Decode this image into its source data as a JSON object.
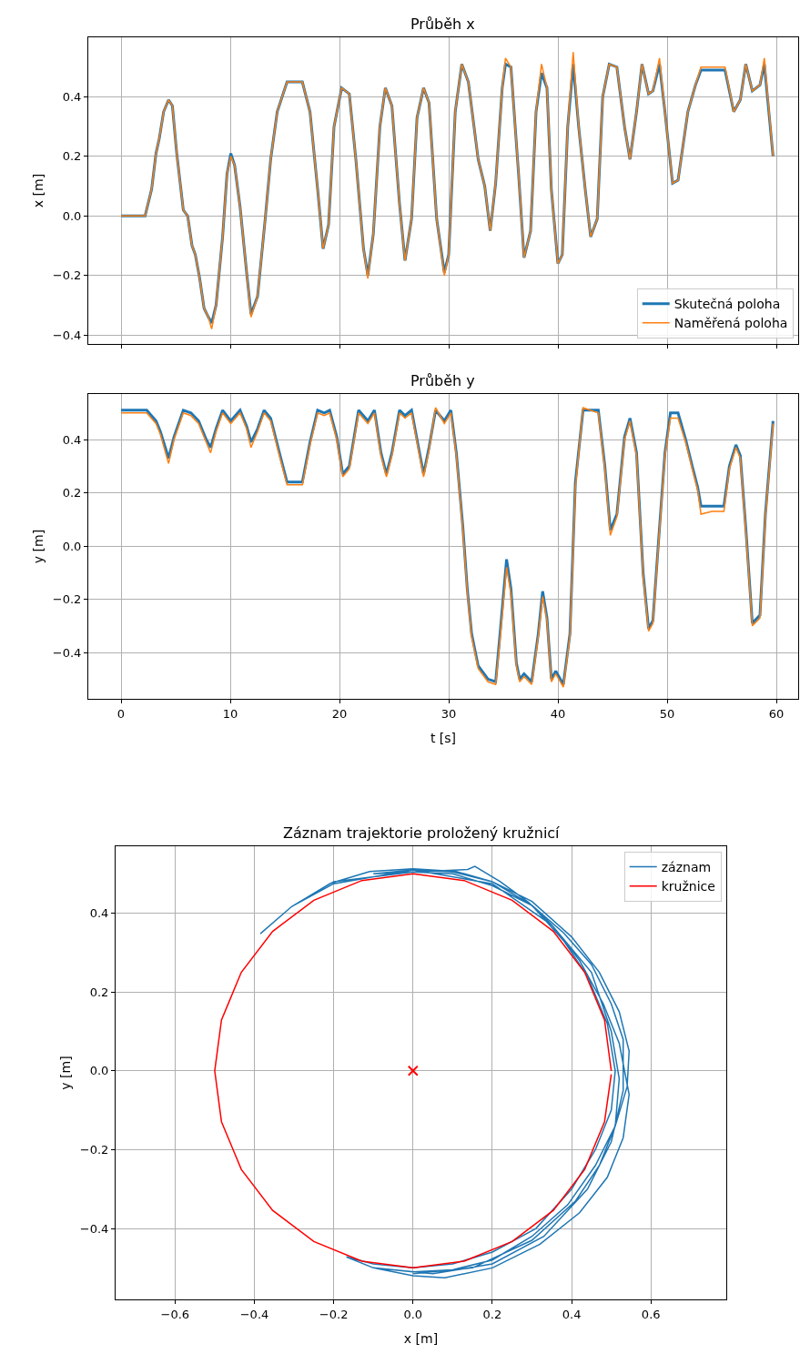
{
  "chart_data": [
    {
      "type": "line",
      "title": "Průběh x",
      "ylabel": "x [m]",
      "xlim": [
        -3,
        62
      ],
      "xticks": [
        0,
        10,
        20,
        30,
        40,
        50,
        60
      ],
      "ylim": [
        -0.43,
        0.6
      ],
      "yticks": [
        {
          "value": -0.4,
          "label": "−0.4"
        },
        {
          "value": -0.2,
          "label": "−0.2"
        },
        {
          "value": 0,
          "label": "0.0"
        },
        {
          "value": 0.2,
          "label": "0.2"
        },
        {
          "value": 0.4,
          "label": "0.4"
        }
      ],
      "grid": true,
      "legend": "bottom right",
      "tick_labels": "y",
      "x": [
        0,
        2.2,
        2.8,
        3.2,
        3.5,
        3.9,
        4.35,
        4.7,
        5.1,
        5.7,
        6.1,
        6.5,
        6.8,
        7.2,
        7.6,
        8.0,
        8.3,
        8.7,
        9.3,
        9.7,
        10.05,
        10.4,
        10.9,
        11.5,
        11.9,
        12.5,
        13.2,
        13.7,
        14.3,
        15.2,
        16.6,
        17.3,
        18.0,
        18.5,
        19.0,
        19.5,
        20.2,
        20.9,
        21.5,
        22.2,
        22.6,
        23.1,
        23.7,
        24.2,
        24.8,
        25.5,
        26.0,
        26.6,
        27.1,
        27.7,
        28.2,
        28.9,
        29.6,
        30.0,
        30.6,
        31.2,
        31.8,
        32.7,
        33.3,
        33.8,
        34.3,
        34.9,
        35.2,
        35.7,
        36.4,
        36.9,
        37.5,
        38.0,
        38.5,
        39.0,
        39.4,
        40.0,
        40.4,
        40.9,
        41.4,
        41.9,
        42.5,
        43.0,
        43.6,
        44.1,
        44.7,
        45.4,
        46.1,
        46.6,
        47.2,
        47.7,
        48.3,
        48.7,
        49.3,
        49.8,
        50.5,
        51.0,
        51.9,
        52.6,
        53.1,
        55.3,
        56.1,
        56.7,
        57.2,
        57.8,
        58.5,
        58.9,
        59.7
      ],
      "series": [
        {
          "name": "Skutečná poloha",
          "color": "#1f77b4",
          "values": [
            0,
            0,
            0.09,
            0.21,
            0.26,
            0.35,
            0.39,
            0.37,
            0.21,
            0.02,
            0.0,
            -0.1,
            -0.13,
            -0.21,
            -0.31,
            -0.34,
            -0.36,
            -0.3,
            -0.07,
            0.14,
            0.21,
            0.17,
            0.03,
            -0.19,
            -0.33,
            -0.27,
            -0.01,
            0.19,
            0.35,
            0.45,
            0.45,
            0.35,
            0.09,
            -0.11,
            -0.03,
            0.3,
            0.43,
            0.41,
            0.19,
            -0.11,
            -0.2,
            -0.06,
            0.3,
            0.43,
            0.37,
            0.04,
            -0.15,
            -0.01,
            0.33,
            0.43,
            0.38,
            -0.01,
            -0.19,
            -0.13,
            0.35,
            0.51,
            0.45,
            0.19,
            0.1,
            -0.05,
            0.11,
            0.43,
            0.51,
            0.5,
            0.14,
            -0.14,
            -0.05,
            0.35,
            0.48,
            0.43,
            0.09,
            -0.16,
            -0.13,
            0.3,
            0.51,
            0.3,
            0.09,
            -0.07,
            -0.01,
            0.4,
            0.51,
            0.5,
            0.3,
            0.19,
            0.35,
            0.51,
            0.41,
            0.42,
            0.51,
            0.35,
            0.11,
            0.12,
            0.35,
            0.44,
            0.49,
            0.49,
            0.35,
            0.39,
            0.51,
            0.42,
            0.44,
            0.51,
            0.2
          ]
        },
        {
          "name": "Naměřená poloha",
          "color": "#ff7f0e",
          "values": [
            0,
            0,
            0.09,
            0.21,
            0.26,
            0.35,
            0.39,
            0.37,
            0.21,
            0.02,
            0.0,
            -0.1,
            -0.13,
            -0.21,
            -0.31,
            -0.34,
            -0.38,
            -0.3,
            -0.07,
            0.14,
            0.2,
            0.17,
            0.03,
            -0.19,
            -0.34,
            -0.27,
            -0.01,
            0.19,
            0.35,
            0.45,
            0.45,
            0.35,
            0.09,
            -0.11,
            -0.03,
            0.3,
            0.43,
            0.41,
            0.19,
            -0.11,
            -0.21,
            -0.06,
            0.3,
            0.43,
            0.37,
            0.04,
            -0.15,
            -0.01,
            0.33,
            0.43,
            0.38,
            -0.01,
            -0.2,
            -0.13,
            0.35,
            0.51,
            0.45,
            0.19,
            0.1,
            -0.05,
            0.11,
            0.43,
            0.53,
            0.5,
            0.14,
            -0.14,
            -0.05,
            0.35,
            0.51,
            0.43,
            0.09,
            -0.16,
            -0.13,
            0.3,
            0.55,
            0.3,
            0.09,
            -0.07,
            -0.01,
            0.4,
            0.51,
            0.5,
            0.3,
            0.19,
            0.35,
            0.51,
            0.41,
            0.42,
            0.53,
            0.35,
            0.11,
            0.12,
            0.35,
            0.44,
            0.5,
            0.5,
            0.35,
            0.39,
            0.51,
            0.42,
            0.44,
            0.53,
            0.2
          ]
        }
      ]
    },
    {
      "type": "line",
      "title": "Průběh y",
      "xlabel": "t [s]",
      "ylabel": "y [m]",
      "xlim": [
        -3,
        62
      ],
      "xticks": [
        0,
        10,
        20,
        30,
        40,
        50,
        60
      ],
      "ylim": [
        -0.574,
        0.571
      ],
      "yticks": [
        {
          "value": -0.4,
          "label": "−0.4"
        },
        {
          "value": -0.2,
          "label": "−0.2"
        },
        {
          "value": 0,
          "label": "0.0"
        },
        {
          "value": 0.2,
          "label": "0.2"
        },
        {
          "value": 0.4,
          "label": "0.4"
        }
      ],
      "grid": true,
      "x": [
        0,
        2.35,
        3.2,
        3.6,
        4.35,
        4.85,
        5.7,
        6.4,
        7.1,
        7.8,
        8.2,
        8.7,
        9.3,
        10.05,
        10.9,
        11.5,
        11.9,
        12.5,
        13.1,
        13.7,
        14.5,
        15.2,
        16.6,
        17.3,
        18.0,
        18.6,
        19.1,
        19.75,
        20.3,
        20.9,
        21.75,
        22.6,
        23.2,
        23.8,
        24.3,
        24.8,
        25.5,
        26.0,
        26.6,
        27.1,
        27.7,
        28.2,
        28.8,
        29.6,
        30.2,
        30.7,
        31.3,
        31.7,
        32.1,
        32.7,
        33.6,
        34.3,
        34.7,
        35.3,
        35.7,
        36.2,
        36.5,
        36.9,
        37.6,
        38.2,
        38.6,
        39.0,
        39.4,
        39.8,
        40.5,
        41.1,
        41.6,
        42.3,
        43.7,
        44.3,
        44.8,
        45.4,
        46.1,
        46.6,
        47.2,
        47.8,
        48.3,
        48.7,
        49.2,
        49.8,
        50.3,
        51.0,
        51.7,
        52.3,
        52.8,
        53.1,
        54.1,
        55.2,
        55.7,
        56.3,
        56.7,
        57.2,
        57.8,
        58.5,
        59.0,
        59.7
      ],
      "series": [
        {
          "color": "#1f77b4",
          "values": [
            0.51,
            0.51,
            0.47,
            0.43,
            0.33,
            0.41,
            0.51,
            0.5,
            0.47,
            0.4,
            0.37,
            0.44,
            0.51,
            0.47,
            0.51,
            0.45,
            0.39,
            0.44,
            0.51,
            0.48,
            0.35,
            0.24,
            0.24,
            0.39,
            0.51,
            0.5,
            0.51,
            0.41,
            0.27,
            0.3,
            0.51,
            0.47,
            0.51,
            0.35,
            0.27,
            0.35,
            0.51,
            0.49,
            0.51,
            0.4,
            0.27,
            0.37,
            0.51,
            0.47,
            0.51,
            0.35,
            0.07,
            -0.16,
            -0.33,
            -0.45,
            -0.5,
            -0.51,
            -0.33,
            -0.05,
            -0.16,
            -0.44,
            -0.5,
            -0.48,
            -0.51,
            -0.33,
            -0.17,
            -0.27,
            -0.5,
            -0.47,
            -0.52,
            -0.33,
            0.24,
            0.51,
            0.51,
            0.3,
            0.06,
            0.12,
            0.41,
            0.48,
            0.35,
            -0.1,
            -0.31,
            -0.28,
            0.01,
            0.35,
            0.5,
            0.5,
            0.4,
            0.3,
            0.22,
            0.15,
            0.15,
            0.15,
            0.3,
            0.38,
            0.34,
            0.07,
            -0.29,
            -0.26,
            0.12,
            0.47
          ]
        },
        {
          "color": "#ff7f0e",
          "values": [
            0.5,
            0.5,
            0.46,
            0.42,
            0.31,
            0.4,
            0.5,
            0.49,
            0.46,
            0.39,
            0.35,
            0.43,
            0.5,
            0.46,
            0.5,
            0.44,
            0.37,
            0.43,
            0.5,
            0.47,
            0.34,
            0.23,
            0.23,
            0.38,
            0.5,
            0.49,
            0.5,
            0.4,
            0.26,
            0.29,
            0.5,
            0.46,
            0.5,
            0.34,
            0.26,
            0.34,
            0.5,
            0.48,
            0.5,
            0.39,
            0.26,
            0.36,
            0.52,
            0.46,
            0.5,
            0.34,
            0.06,
            -0.17,
            -0.34,
            -0.46,
            -0.51,
            -0.52,
            -0.35,
            -0.08,
            -0.18,
            -0.45,
            -0.51,
            -0.49,
            -0.52,
            -0.34,
            -0.19,
            -0.28,
            -0.51,
            -0.48,
            -0.53,
            -0.34,
            0.22,
            0.52,
            0.5,
            0.29,
            0.04,
            0.11,
            0.4,
            0.47,
            0.34,
            -0.11,
            -0.32,
            -0.29,
            0.0,
            0.34,
            0.48,
            0.48,
            0.39,
            0.29,
            0.21,
            0.12,
            0.13,
            0.13,
            0.29,
            0.37,
            0.33,
            0.06,
            -0.3,
            -0.27,
            0.11,
            0.46
          ]
        }
      ]
    },
    {
      "type": "line",
      "title": "Záznam trajektorie proložený kružnicí",
      "xlabel": "x [m]",
      "ylabel": "y [m]",
      "xlim": [
        -0.75,
        0.79
      ],
      "xticks": [
        {
          "value": -0.6,
          "label": "−0.6"
        },
        {
          "value": -0.4,
          "label": "−0.4"
        },
        {
          "value": -0.2,
          "label": "−0.2"
        },
        {
          "value": 0,
          "label": "0.0"
        },
        {
          "value": 0.2,
          "label": "0.2"
        },
        {
          "value": 0.4,
          "label": "0.4"
        },
        {
          "value": 0.6,
          "label": "0.6"
        }
      ],
      "ylim": [
        -0.58,
        0.57
      ],
      "yticks": [
        {
          "value": -0.4,
          "label": "−0.4"
        },
        {
          "value": -0.2,
          "label": "−0.2"
        },
        {
          "value": 0,
          "label": "0.0"
        },
        {
          "value": 0.2,
          "label": "0.2"
        },
        {
          "value": 0.4,
          "label": "0.4"
        }
      ],
      "grid": true,
      "legend": "top right",
      "series": [
        {
          "name": "záznam",
          "color": "#1f77b4",
          "x": [
            -0.385,
            -0.306,
            -0.208,
            -0.109,
            0,
            0.109,
            0.2,
            0.3,
            0.38,
            0.44,
            0.49,
            0.51,
            0.5,
            0.46,
            0.4,
            0.31,
            0.2,
            0.1,
            0,
            -0.1,
            -0.168,
            -0.1,
            0,
            0.1,
            0.2,
            0.3,
            0.39,
            0.46,
            0.51,
            0.54,
            0.545,
            0.52,
            0.47,
            0.4,
            0.3,
            0.2,
            0.1,
            0,
            -0.1,
            0,
            0.138,
            0.156,
            0.22,
            0.292,
            0.35,
            0.42,
            0.48,
            0.52,
            0.545,
            0.53,
            0.49,
            0.42,
            0.32,
            0.2,
            0.08,
            0,
            -0.1,
            0.05,
            0.2,
            0.33,
            0.44,
            0.5,
            0.53,
            0.53,
            0.5,
            0.45,
            0.38,
            0.3,
            0.2,
            0.1,
            0,
            -0.2,
            -0.3,
            -0.2,
            0,
            0.2,
            0.35,
            0.45,
            0.5,
            0.52,
            0.51,
            0.47,
            0.41,
            0.3,
            0.15,
            0
          ],
          "values": [
            0.348,
            0.417,
            0.476,
            0.506,
            0.513,
            0.506,
            0.48,
            0.42,
            0.33,
            0.24,
            0.12,
            0,
            -0.1,
            -0.2,
            -0.3,
            -0.4,
            -0.46,
            -0.49,
            -0.5,
            -0.49,
            -0.472,
            -0.5,
            -0.51,
            -0.505,
            -0.48,
            -0.42,
            -0.34,
            -0.24,
            -0.14,
            -0.04,
            0.05,
            0.15,
            0.25,
            0.34,
            0.43,
            0.48,
            0.505,
            0.51,
            0.5,
            0.505,
            0.511,
            0.519,
            0.48,
            0.427,
            0.37,
            0.28,
            0.17,
            0.07,
            -0.06,
            -0.17,
            -0.27,
            -0.36,
            -0.44,
            -0.5,
            -0.525,
            -0.52,
            -0.5,
            -0.515,
            -0.49,
            -0.42,
            -0.3,
            -0.18,
            -0.05,
            0.08,
            0.17,
            0.27,
            0.35,
            0.42,
            0.47,
            0.5,
            0.505,
            0.48,
            0.42,
            0.475,
            0.51,
            0.475,
            0.37,
            0.25,
            0.1,
            -0.02,
            -0.14,
            -0.24,
            -0.33,
            -0.43,
            -0.5,
            -0.515
          ]
        },
        {
          "name": "kružnice",
          "color": "#ff0000",
          "x": [
            0.5,
            0.483,
            0.433,
            0.354,
            0.25,
            0.129,
            0,
            -0.129,
            -0.25,
            -0.354,
            -0.433,
            -0.483,
            -0.5,
            -0.483,
            -0.433,
            -0.354,
            -0.25,
            -0.129,
            0,
            0.129,
            0.25,
            0.354,
            0.433,
            0.483,
            0.5
          ],
          "values": [
            0,
            0.129,
            0.25,
            0.354,
            0.433,
            0.483,
            0.5,
            0.483,
            0.433,
            0.354,
            0.25,
            0.129,
            0,
            -0.129,
            -0.25,
            -0.354,
            -0.433,
            -0.483,
            -0.5,
            -0.483,
            -0.433,
            -0.354,
            -0.25,
            -0.129,
            -0.009
          ]
        },
        {
          "type": "scatter",
          "marker": "cross",
          "color": "#ff0000",
          "x": [
            0
          ],
          "values": [
            0
          ]
        }
      ]
    }
  ]
}
